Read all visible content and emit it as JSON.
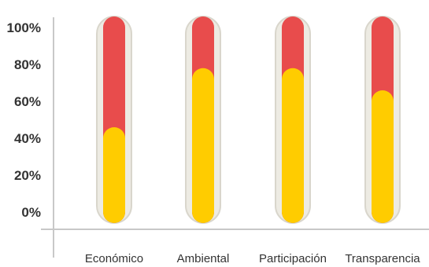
{
  "chart_data": {
    "type": "bar",
    "categories": [
      "Económico",
      "Ambiental",
      "Participación",
      "Transparencia"
    ],
    "y_tick_labels": [
      "0%",
      "20%",
      "40%",
      "60%",
      "80%",
      "100%"
    ],
    "ylim": [
      0,
      100
    ],
    "series": [
      {
        "values": [
          40,
          72,
          72,
          60
        ]
      },
      {
        "values": [
          100,
          100,
          100,
          100
        ]
      }
    ],
    "colors": {
      "lower": "#FFCC00",
      "upper": "#E84C4C",
      "frame": "#EDEBE3",
      "frame_border": "#D9D6CC",
      "axis": "#C8C8C8"
    },
    "grid": false,
    "legend": "none"
  }
}
